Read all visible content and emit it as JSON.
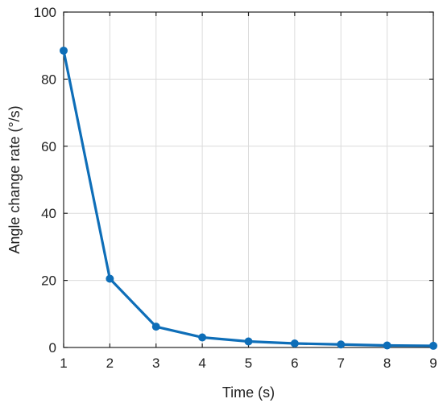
{
  "chart_data": {
    "type": "line",
    "title": "",
    "xlabel": "Time (s)",
    "ylabel": "Angle change rate (°/s)",
    "xlim": [
      1,
      9
    ],
    "ylim": [
      0,
      100
    ],
    "x_ticks": [
      1,
      2,
      3,
      4,
      5,
      6,
      7,
      8,
      9
    ],
    "y_ticks": [
      0,
      20,
      40,
      60,
      80,
      100
    ],
    "grid": true,
    "series": [
      {
        "x": [
          1,
          2,
          3,
          4,
          5,
          6,
          7,
          8,
          9
        ],
        "y": [
          88.5,
          20.5,
          6.2,
          3.0,
          1.8,
          1.2,
          0.9,
          0.6,
          0.5
        ],
        "color": "#0e6eb8",
        "marker": "circle"
      }
    ]
  }
}
